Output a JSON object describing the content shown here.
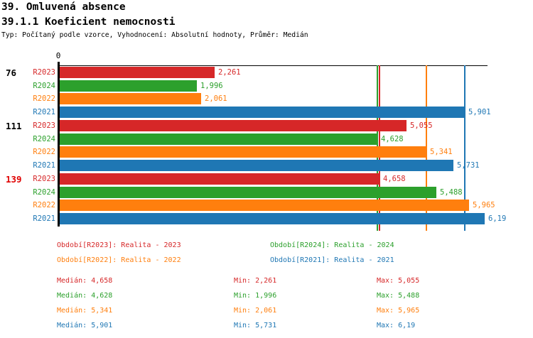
{
  "header": {
    "title": "39. Omluvená absence",
    "subtitle": "39.1.1 Koeficient nemocnosti",
    "meta": "Typ: Počítaný podle vzorce, Vyhodnocení: Absolutní hodnoty, Průměr: Medián"
  },
  "colors": {
    "R2023": "#d62728",
    "R2024": "#2ca02c",
    "R2022": "#ff7f0e",
    "R2021": "#1f77b4",
    "highlight": "#e00000",
    "text": "#000000"
  },
  "chart_data": {
    "type": "bar",
    "orientation": "horizontal",
    "axis": {
      "zero_label": "0",
      "min": 0,
      "max": 6.25,
      "gridlines": false
    },
    "series": [
      "R2023",
      "R2024",
      "R2022",
      "R2021"
    ],
    "groups": [
      {
        "label": "76",
        "highlight": false,
        "values": [
          2.261,
          1.996,
          2.061,
          5.901
        ],
        "display": [
          "2,261",
          "1,996",
          "2,061",
          "5,901"
        ]
      },
      {
        "label": "111",
        "highlight": false,
        "values": [
          5.055,
          4.628,
          5.341,
          5.731
        ],
        "display": [
          "5,055",
          "4,628",
          "5,341",
          "5,731"
        ]
      },
      {
        "label": "139",
        "highlight": true,
        "values": [
          4.658,
          5.488,
          5.965,
          6.19
        ],
        "display": [
          "4,658",
          "5,488",
          "5,965",
          "6,19"
        ]
      }
    ],
    "median_lines": [
      4.658,
      4.628,
      5.341,
      5.901
    ],
    "legend_position": "bottom"
  },
  "legend": {
    "items": [
      {
        "text": "Období[R2023]: Realita - 2023",
        "series": "R2023"
      },
      {
        "text": "Období[R2024]: Realita - 2024",
        "series": "R2024"
      },
      {
        "text": "Období[R2022]: Realita - 2022",
        "series": "R2022"
      },
      {
        "text": "Období[R2021]: Realita - 2021",
        "series": "R2021"
      }
    ]
  },
  "stats": {
    "labels": {
      "median": "Medián:",
      "min": "Min:",
      "max": "Max:"
    },
    "rows": [
      {
        "series": "R2023",
        "median": "4,658",
        "min": "2,261",
        "max": "5,055"
      },
      {
        "series": "R2024",
        "median": "4,628",
        "min": "1,996",
        "max": "5,488"
      },
      {
        "series": "R2022",
        "median": "5,341",
        "min": "2,061",
        "max": "5,965"
      },
      {
        "series": "R2021",
        "median": "5,901",
        "min": "5,731",
        "max": "6,19"
      }
    ]
  }
}
